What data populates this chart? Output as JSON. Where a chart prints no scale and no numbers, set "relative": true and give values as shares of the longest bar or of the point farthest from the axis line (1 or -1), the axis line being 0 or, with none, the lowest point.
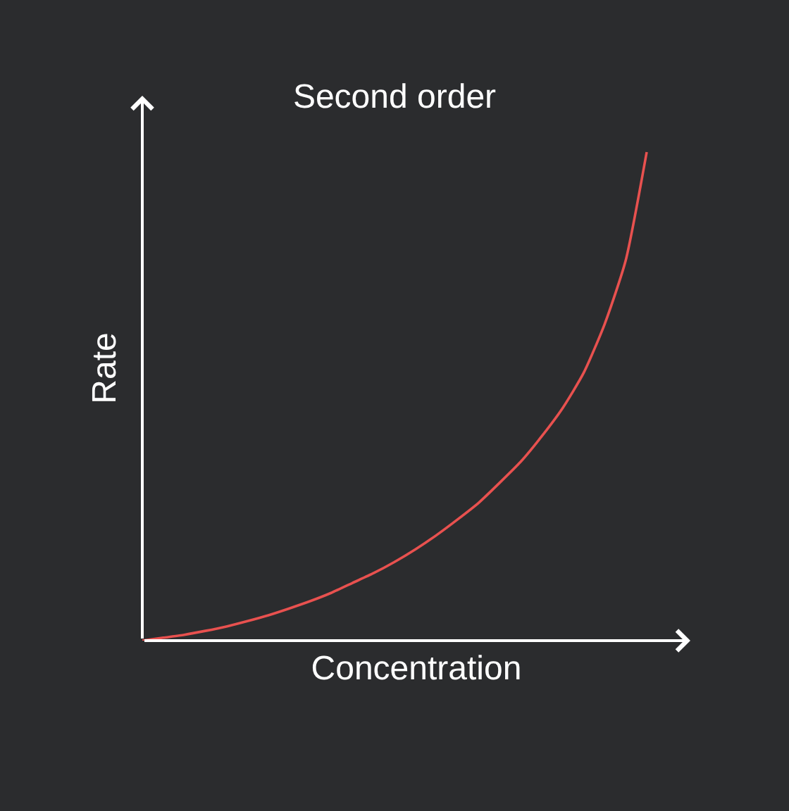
{
  "chart_data": {
    "type": "line",
    "title": "Second order",
    "xlabel": "Concentration",
    "ylabel": "Rate",
    "relative": true,
    "categories": [
      null,
      null,
      null,
      null,
      null,
      null,
      null,
      null,
      null,
      null,
      null,
      null,
      null,
      null,
      null,
      null,
      null,
      null,
      null,
      null,
      null,
      null,
      null,
      null,
      null
    ],
    "series": [
      {
        "color": "#e8514f",
        "values": [
          0,
          0.006,
          0.012,
          0.02,
          0.029,
          0.04,
          0.052,
          0.066,
          0.081,
          0.098,
          0.118,
          0.138,
          0.161,
          0.187,
          0.216,
          0.248,
          0.282,
          0.323,
          0.366,
          0.418,
          0.476,
          0.548,
          0.648,
          0.778,
          1
        ]
      }
    ]
  }
}
